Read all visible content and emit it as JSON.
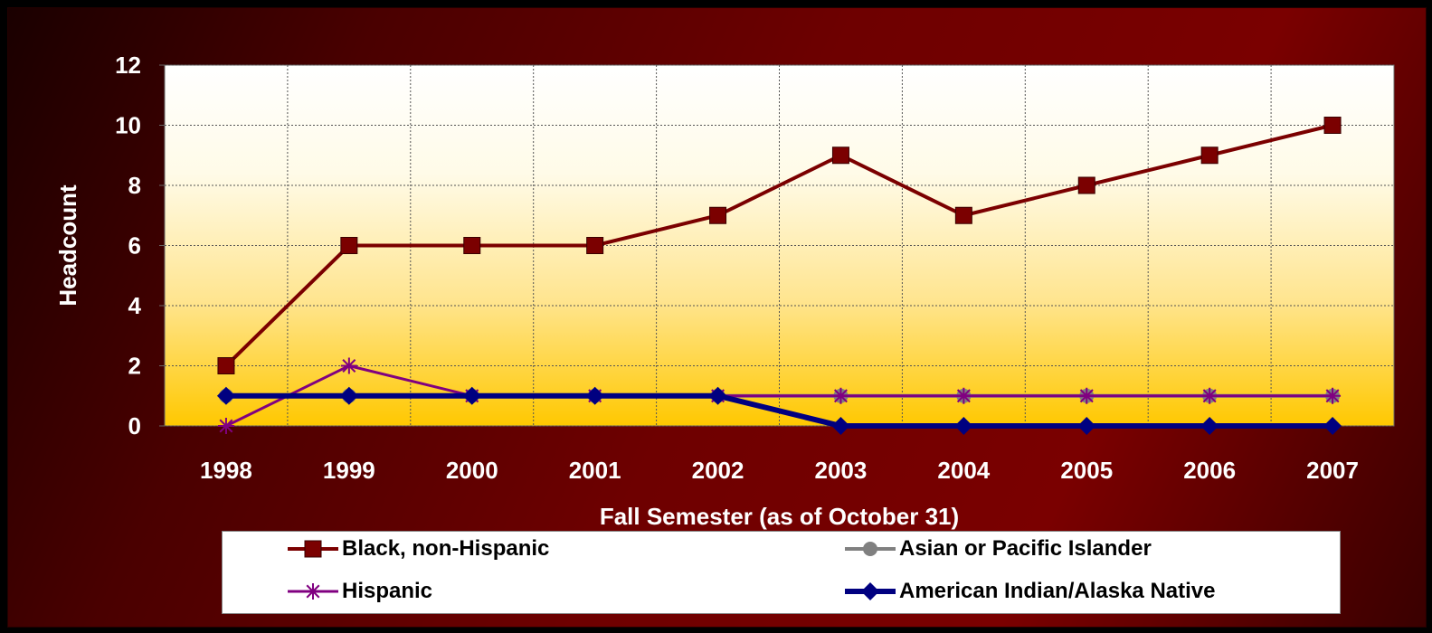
{
  "chart_data": {
    "type": "line",
    "title": "",
    "xlabel": "Fall Semester (as of October 31)",
    "ylabel": "Headcount",
    "categories": [
      "1998",
      "1999",
      "2000",
      "2001",
      "2002",
      "2003",
      "2004",
      "2005",
      "2006",
      "2007"
    ],
    "ylim": [
      0,
      12
    ],
    "yticks": [
      "0",
      "2",
      "4",
      "6",
      "8",
      "10",
      "12"
    ],
    "grid": true,
    "legend_position": "bottom",
    "series": [
      {
        "name": "Black, non-Hispanic",
        "color": "#7b0000",
        "marker": "square",
        "values": [
          2,
          6,
          6,
          6,
          7,
          9,
          7,
          8,
          9,
          10
        ]
      },
      {
        "name": "Asian or Pacific Islander",
        "color": "#808080",
        "marker": "circle",
        "values": [
          1,
          1,
          1,
          1,
          1,
          1,
          1,
          1,
          1,
          1
        ]
      },
      {
        "name": "Hispanic",
        "color": "#800080",
        "marker": "star",
        "values": [
          0,
          2,
          1,
          1,
          1,
          1,
          1,
          1,
          1,
          1
        ]
      },
      {
        "name": "American Indian/Alaska Native",
        "color": "#000080",
        "marker": "diamond",
        "values": [
          1,
          1,
          1,
          1,
          1,
          0,
          0,
          0,
          0,
          0
        ]
      }
    ]
  }
}
